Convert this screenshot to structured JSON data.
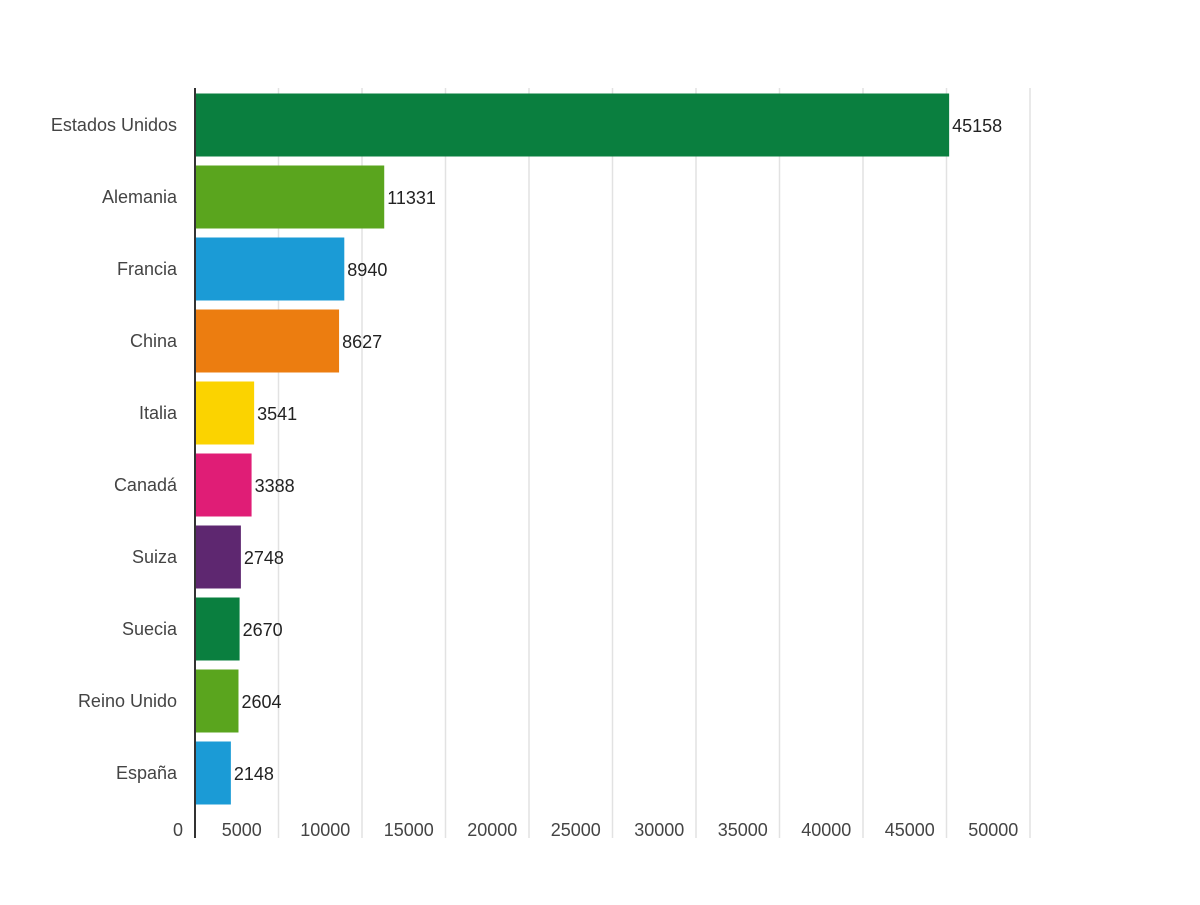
{
  "chart_data": {
    "type": "bar",
    "orientation": "horizontal",
    "categories": [
      "Estados Unidos",
      "Alemania",
      "Francia",
      "China",
      "Italia",
      "Canadá",
      "Suiza",
      "Suecia",
      "Reino Unido",
      "España"
    ],
    "values": [
      45158,
      11331,
      8940,
      8627,
      3541,
      3388,
      2748,
      2670,
      2604,
      2148
    ],
    "colors": [
      "#0a7f3f",
      "#5aa51e",
      "#1b9bd6",
      "#ec7d10",
      "#fbd300",
      "#e01d76",
      "#5e2770",
      "#0a7f3f",
      "#5aa51e",
      "#1b9bd6"
    ],
    "data_labels": [
      "45158",
      "11331",
      "8940",
      "8627",
      "3541",
      "3388",
      "2748",
      "2670",
      "2604",
      "2148"
    ],
    "x_ticks": [
      "0",
      "5000",
      "10000",
      "15000",
      "20000",
      "25000",
      "30000",
      "35000",
      "40000",
      "45000",
      "50000"
    ],
    "xlim": [
      0,
      50000
    ],
    "title": "",
    "xlabel": "",
    "ylabel": "",
    "grid": "vertical",
    "legend": "none"
  }
}
